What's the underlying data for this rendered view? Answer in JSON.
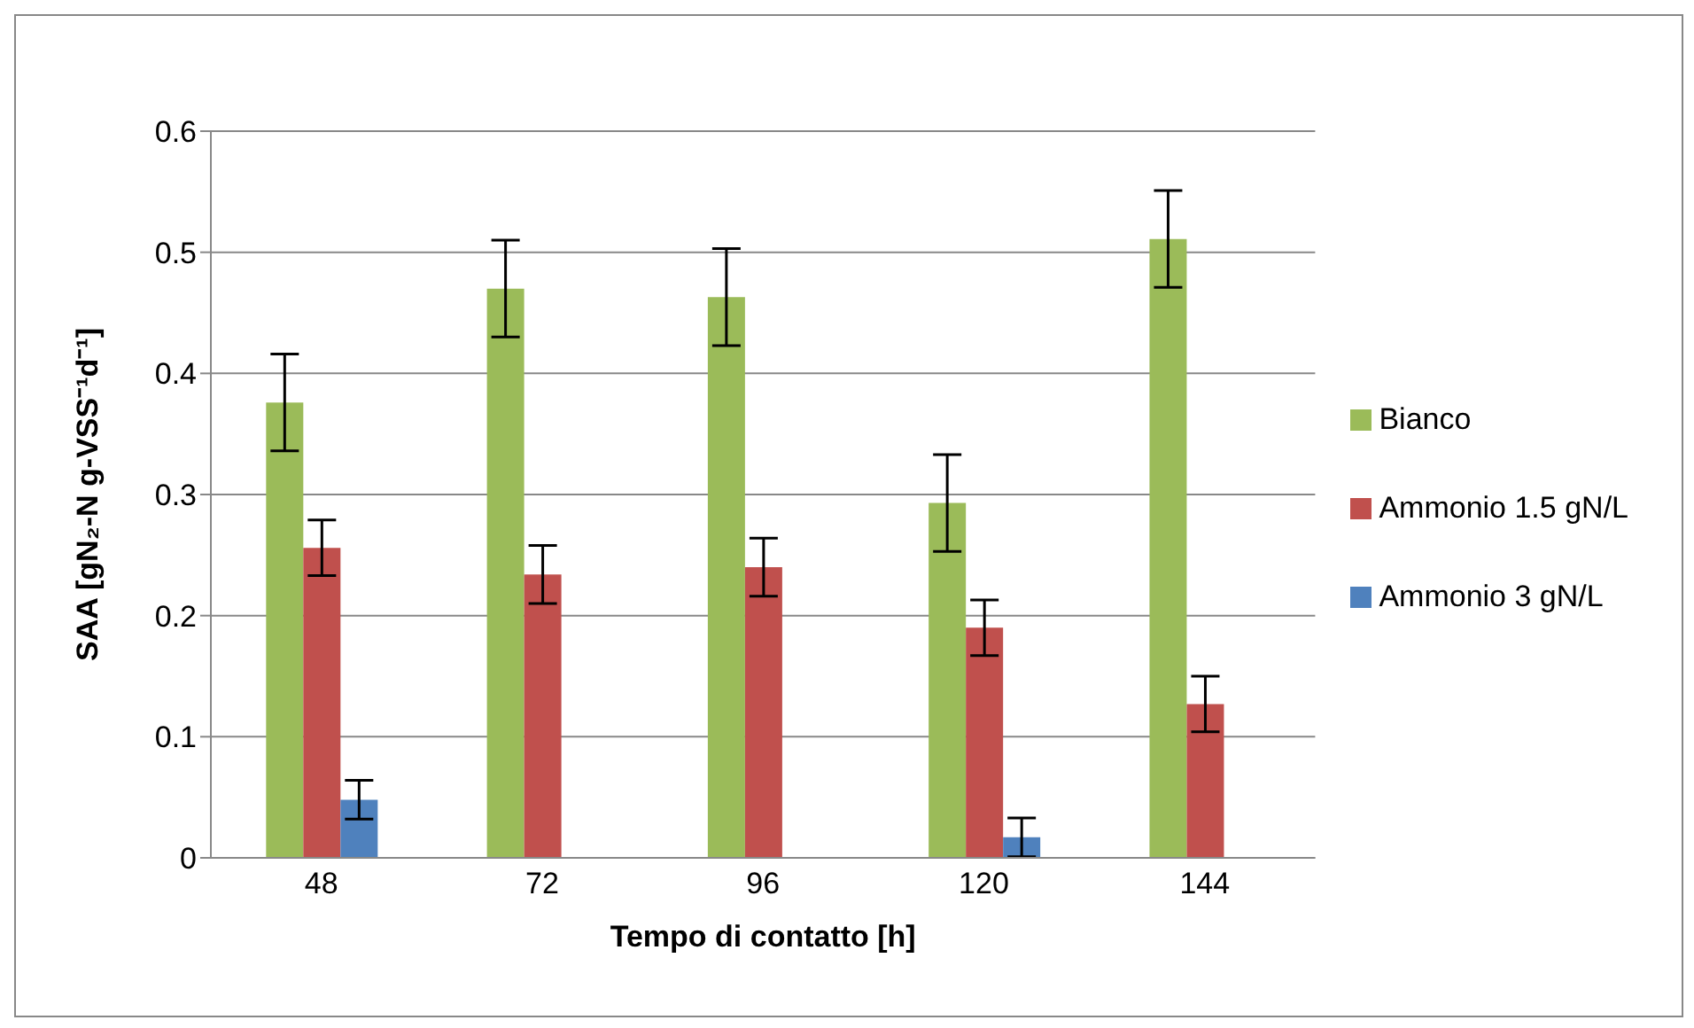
{
  "chart_data": {
    "type": "bar",
    "xlabel": "Tempo di contatto [h]",
    "ylabel": "SAA [gN₂-N g-VSS⁻¹d⁻¹]",
    "categories": [
      "48",
      "72",
      "96",
      "120",
      "144"
    ],
    "series": [
      {
        "name": "Bianco",
        "color": "#9bbb59",
        "values": [
          0.376,
          0.47,
          0.463,
          0.293,
          0.511
        ],
        "errors": [
          0.04,
          0.04,
          0.04,
          0.04,
          0.04
        ]
      },
      {
        "name": "Ammonio 1.5 gN/L",
        "color": "#c0504d",
        "values": [
          0.256,
          0.234,
          0.24,
          0.19,
          0.127
        ],
        "errors": [
          0.023,
          0.024,
          0.024,
          0.023,
          0.023
        ]
      },
      {
        "name": "Ammonio 3 gN/L",
        "color": "#4f81bd",
        "values": [
          0.048,
          null,
          null,
          0.017,
          null
        ],
        "errors": [
          0.016,
          null,
          null,
          0.016,
          null
        ]
      }
    ],
    "ylim": [
      0,
      0.6
    ],
    "yticks": [
      0,
      0.1,
      0.2,
      0.3,
      0.4,
      0.5,
      0.6
    ],
    "grid": "y",
    "legend": "right"
  }
}
